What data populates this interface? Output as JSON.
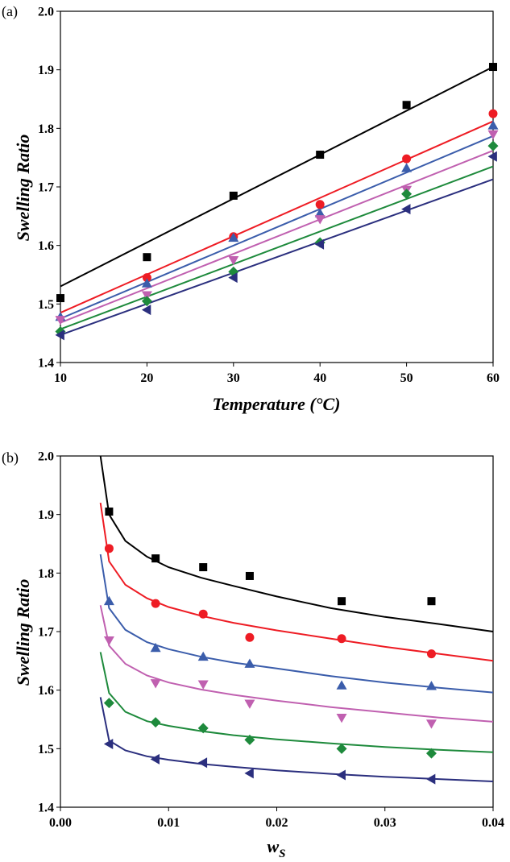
{
  "chart_data": [
    {
      "panel_label": "(a)",
      "type": "scatter",
      "xlabel": "Temperature (°C)",
      "ylabel": "Swelling Ratio",
      "xlim": [
        10,
        60
      ],
      "ylim": [
        1.4,
        2.0
      ],
      "xticks": [
        "10",
        "20",
        "30",
        "40",
        "50",
        "60"
      ],
      "yticks": [
        "1.4",
        "1.5",
        "1.6",
        "1.7",
        "1.8",
        "1.9",
        "2.0"
      ],
      "grid": false,
      "legend": "none",
      "series": [
        {
          "color": "#000000",
          "marker": "square",
          "points": [
            [
              10,
              1.51
            ],
            [
              20,
              1.58
            ],
            [
              30,
              1.685
            ],
            [
              40,
              1.755
            ],
            [
              50,
              1.84
            ],
            [
              60,
              1.905
            ]
          ],
          "fit": [
            [
              10,
              1.53
            ],
            [
              60,
              1.905
            ]
          ]
        },
        {
          "color": "#ee1c24",
          "marker": "circle",
          "points": [
            [
              20,
              1.545
            ],
            [
              30,
              1.615
            ],
            [
              40,
              1.67
            ],
            [
              50,
              1.748
            ],
            [
              60,
              1.825
            ]
          ],
          "fit": [
            [
              10,
              1.485
            ],
            [
              60,
              1.812
            ]
          ]
        },
        {
          "color": "#3b5dab",
          "marker": "triangle-up",
          "points": [
            [
              10,
              1.478
            ],
            [
              20,
              1.535
            ],
            [
              30,
              1.613
            ],
            [
              40,
              1.655
            ],
            [
              50,
              1.732
            ],
            [
              60,
              1.805
            ]
          ],
          "fit": [
            [
              10,
              1.475
            ],
            [
              60,
              1.787
            ]
          ]
        },
        {
          "color": "#c060b0",
          "marker": "triangle-down",
          "points": [
            [
              10,
              1.473
            ],
            [
              20,
              1.515
            ],
            [
              30,
              1.575
            ],
            [
              40,
              1.645
            ],
            [
              50,
              1.695
            ],
            [
              60,
              1.79
            ]
          ],
          "fit": [
            [
              10,
              1.468
            ],
            [
              60,
              1.762
            ]
          ]
        },
        {
          "color": "#1e8a3c",
          "marker": "diamond",
          "points": [
            [
              10,
              1.453
            ],
            [
              20,
              1.505
            ],
            [
              30,
              1.555
            ],
            [
              40,
              1.605
            ],
            [
              50,
              1.688
            ],
            [
              60,
              1.77
            ]
          ],
          "fit": [
            [
              10,
              1.457
            ],
            [
              60,
              1.735
            ]
          ]
        },
        {
          "color": "#2b2f7e",
          "marker": "triangle-left",
          "points": [
            [
              10,
              1.447
            ],
            [
              20,
              1.49
            ],
            [
              30,
              1.545
            ],
            [
              40,
              1.602
            ],
            [
              50,
              1.662
            ],
            [
              60,
              1.752
            ]
          ],
          "fit": [
            [
              10,
              1.447
            ],
            [
              60,
              1.713
            ]
          ]
        }
      ]
    },
    {
      "panel_label": "(b)",
      "type": "scatter",
      "xlabel": "w",
      "xlabel_sub": "S",
      "ylabel": "Swelling Ratio",
      "xlim": [
        0.0,
        0.04
      ],
      "ylim": [
        1.4,
        2.0
      ],
      "xticks": [
        "0.00",
        "0.01",
        "0.02",
        "0.03",
        "0.04"
      ],
      "yticks": [
        "1.4",
        "1.5",
        "1.6",
        "1.7",
        "1.8",
        "1.9",
        "2.0"
      ],
      "grid": false,
      "legend": "none",
      "series": [
        {
          "color": "#000000",
          "marker": "square",
          "points": [
            [
              0.0045,
              1.905
            ],
            [
              0.0088,
              1.825
            ],
            [
              0.0132,
              1.81
            ],
            [
              0.0175,
              1.795
            ],
            [
              0.026,
              1.752
            ],
            [
              0.0343,
              1.752
            ]
          ],
          "fit": [
            [
              0.0037,
              2.0
            ],
            [
              0.0045,
              1.9
            ],
            [
              0.006,
              1.855
            ],
            [
              0.008,
              1.828
            ],
            [
              0.01,
              1.81
            ],
            [
              0.013,
              1.792
            ],
            [
              0.016,
              1.778
            ],
            [
              0.02,
              1.76
            ],
            [
              0.025,
              1.74
            ],
            [
              0.03,
              1.725
            ],
            [
              0.035,
              1.713
            ],
            [
              0.04,
              1.7
            ]
          ]
        },
        {
          "color": "#ee1c24",
          "marker": "circle",
          "points": [
            [
              0.0045,
              1.842
            ],
            [
              0.0088,
              1.748
            ],
            [
              0.0132,
              1.73
            ],
            [
              0.0175,
              1.69
            ],
            [
              0.026,
              1.688
            ],
            [
              0.0343,
              1.662
            ]
          ],
          "fit": [
            [
              0.0037,
              1.92
            ],
            [
              0.0045,
              1.82
            ],
            [
              0.006,
              1.78
            ],
            [
              0.008,
              1.757
            ],
            [
              0.01,
              1.742
            ],
            [
              0.013,
              1.727
            ],
            [
              0.016,
              1.715
            ],
            [
              0.02,
              1.702
            ],
            [
              0.025,
              1.688
            ],
            [
              0.03,
              1.674
            ],
            [
              0.035,
              1.662
            ],
            [
              0.04,
              1.65
            ]
          ]
        },
        {
          "color": "#3b5dab",
          "marker": "triangle-up",
          "points": [
            [
              0.0045,
              1.752
            ],
            [
              0.0088,
              1.672
            ],
            [
              0.0132,
              1.657
            ],
            [
              0.0175,
              1.645
            ],
            [
              0.026,
              1.608
            ],
            [
              0.0343,
              1.607
            ]
          ],
          "fit": [
            [
              0.0037,
              1.832
            ],
            [
              0.0045,
              1.74
            ],
            [
              0.006,
              1.703
            ],
            [
              0.008,
              1.682
            ],
            [
              0.01,
              1.67
            ],
            [
              0.013,
              1.657
            ],
            [
              0.016,
              1.647
            ],
            [
              0.02,
              1.637
            ],
            [
              0.025,
              1.624
            ],
            [
              0.03,
              1.613
            ],
            [
              0.035,
              1.604
            ],
            [
              0.04,
              1.596
            ]
          ]
        },
        {
          "color": "#c060b0",
          "marker": "triangle-down",
          "points": [
            [
              0.0045,
              1.685
            ],
            [
              0.0088,
              1.612
            ],
            [
              0.0132,
              1.61
            ],
            [
              0.0175,
              1.577
            ],
            [
              0.026,
              1.553
            ],
            [
              0.0343,
              1.543
            ]
          ],
          "fit": [
            [
              0.0037,
              1.745
            ],
            [
              0.0045,
              1.676
            ],
            [
              0.006,
              1.645
            ],
            [
              0.008,
              1.625
            ],
            [
              0.01,
              1.613
            ],
            [
              0.013,
              1.601
            ],
            [
              0.016,
              1.592
            ],
            [
              0.02,
              1.582
            ],
            [
              0.025,
              1.571
            ],
            [
              0.03,
              1.562
            ],
            [
              0.035,
              1.553
            ],
            [
              0.04,
              1.546
            ]
          ]
        },
        {
          "color": "#1e8a3c",
          "marker": "diamond",
          "points": [
            [
              0.0045,
              1.578
            ],
            [
              0.0088,
              1.545
            ],
            [
              0.0132,
              1.535
            ],
            [
              0.0175,
              1.515
            ],
            [
              0.026,
              1.5
            ],
            [
              0.0343,
              1.492
            ]
          ],
          "fit": [
            [
              0.0037,
              1.665
            ],
            [
              0.0045,
              1.595
            ],
            [
              0.006,
              1.563
            ],
            [
              0.008,
              1.547
            ],
            [
              0.01,
              1.539
            ],
            [
              0.013,
              1.53
            ],
            [
              0.016,
              1.523
            ],
            [
              0.02,
              1.516
            ],
            [
              0.025,
              1.509
            ],
            [
              0.03,
              1.503
            ],
            [
              0.035,
              1.498
            ],
            [
              0.04,
              1.494
            ]
          ]
        },
        {
          "color": "#2b2f7e",
          "marker": "triangle-left",
          "points": [
            [
              0.0045,
              1.508
            ],
            [
              0.0088,
              1.482
            ],
            [
              0.0132,
              1.476
            ],
            [
              0.0175,
              1.458
            ],
            [
              0.026,
              1.455
            ],
            [
              0.0343,
              1.448
            ]
          ],
          "fit": [
            [
              0.0037,
              1.588
            ],
            [
              0.0045,
              1.514
            ],
            [
              0.006,
              1.497
            ],
            [
              0.008,
              1.487
            ],
            [
              0.01,
              1.481
            ],
            [
              0.013,
              1.474
            ],
            [
              0.016,
              1.469
            ],
            [
              0.02,
              1.463
            ],
            [
              0.025,
              1.457
            ],
            [
              0.03,
              1.452
            ],
            [
              0.035,
              1.448
            ],
            [
              0.04,
              1.444
            ]
          ]
        }
      ]
    }
  ]
}
